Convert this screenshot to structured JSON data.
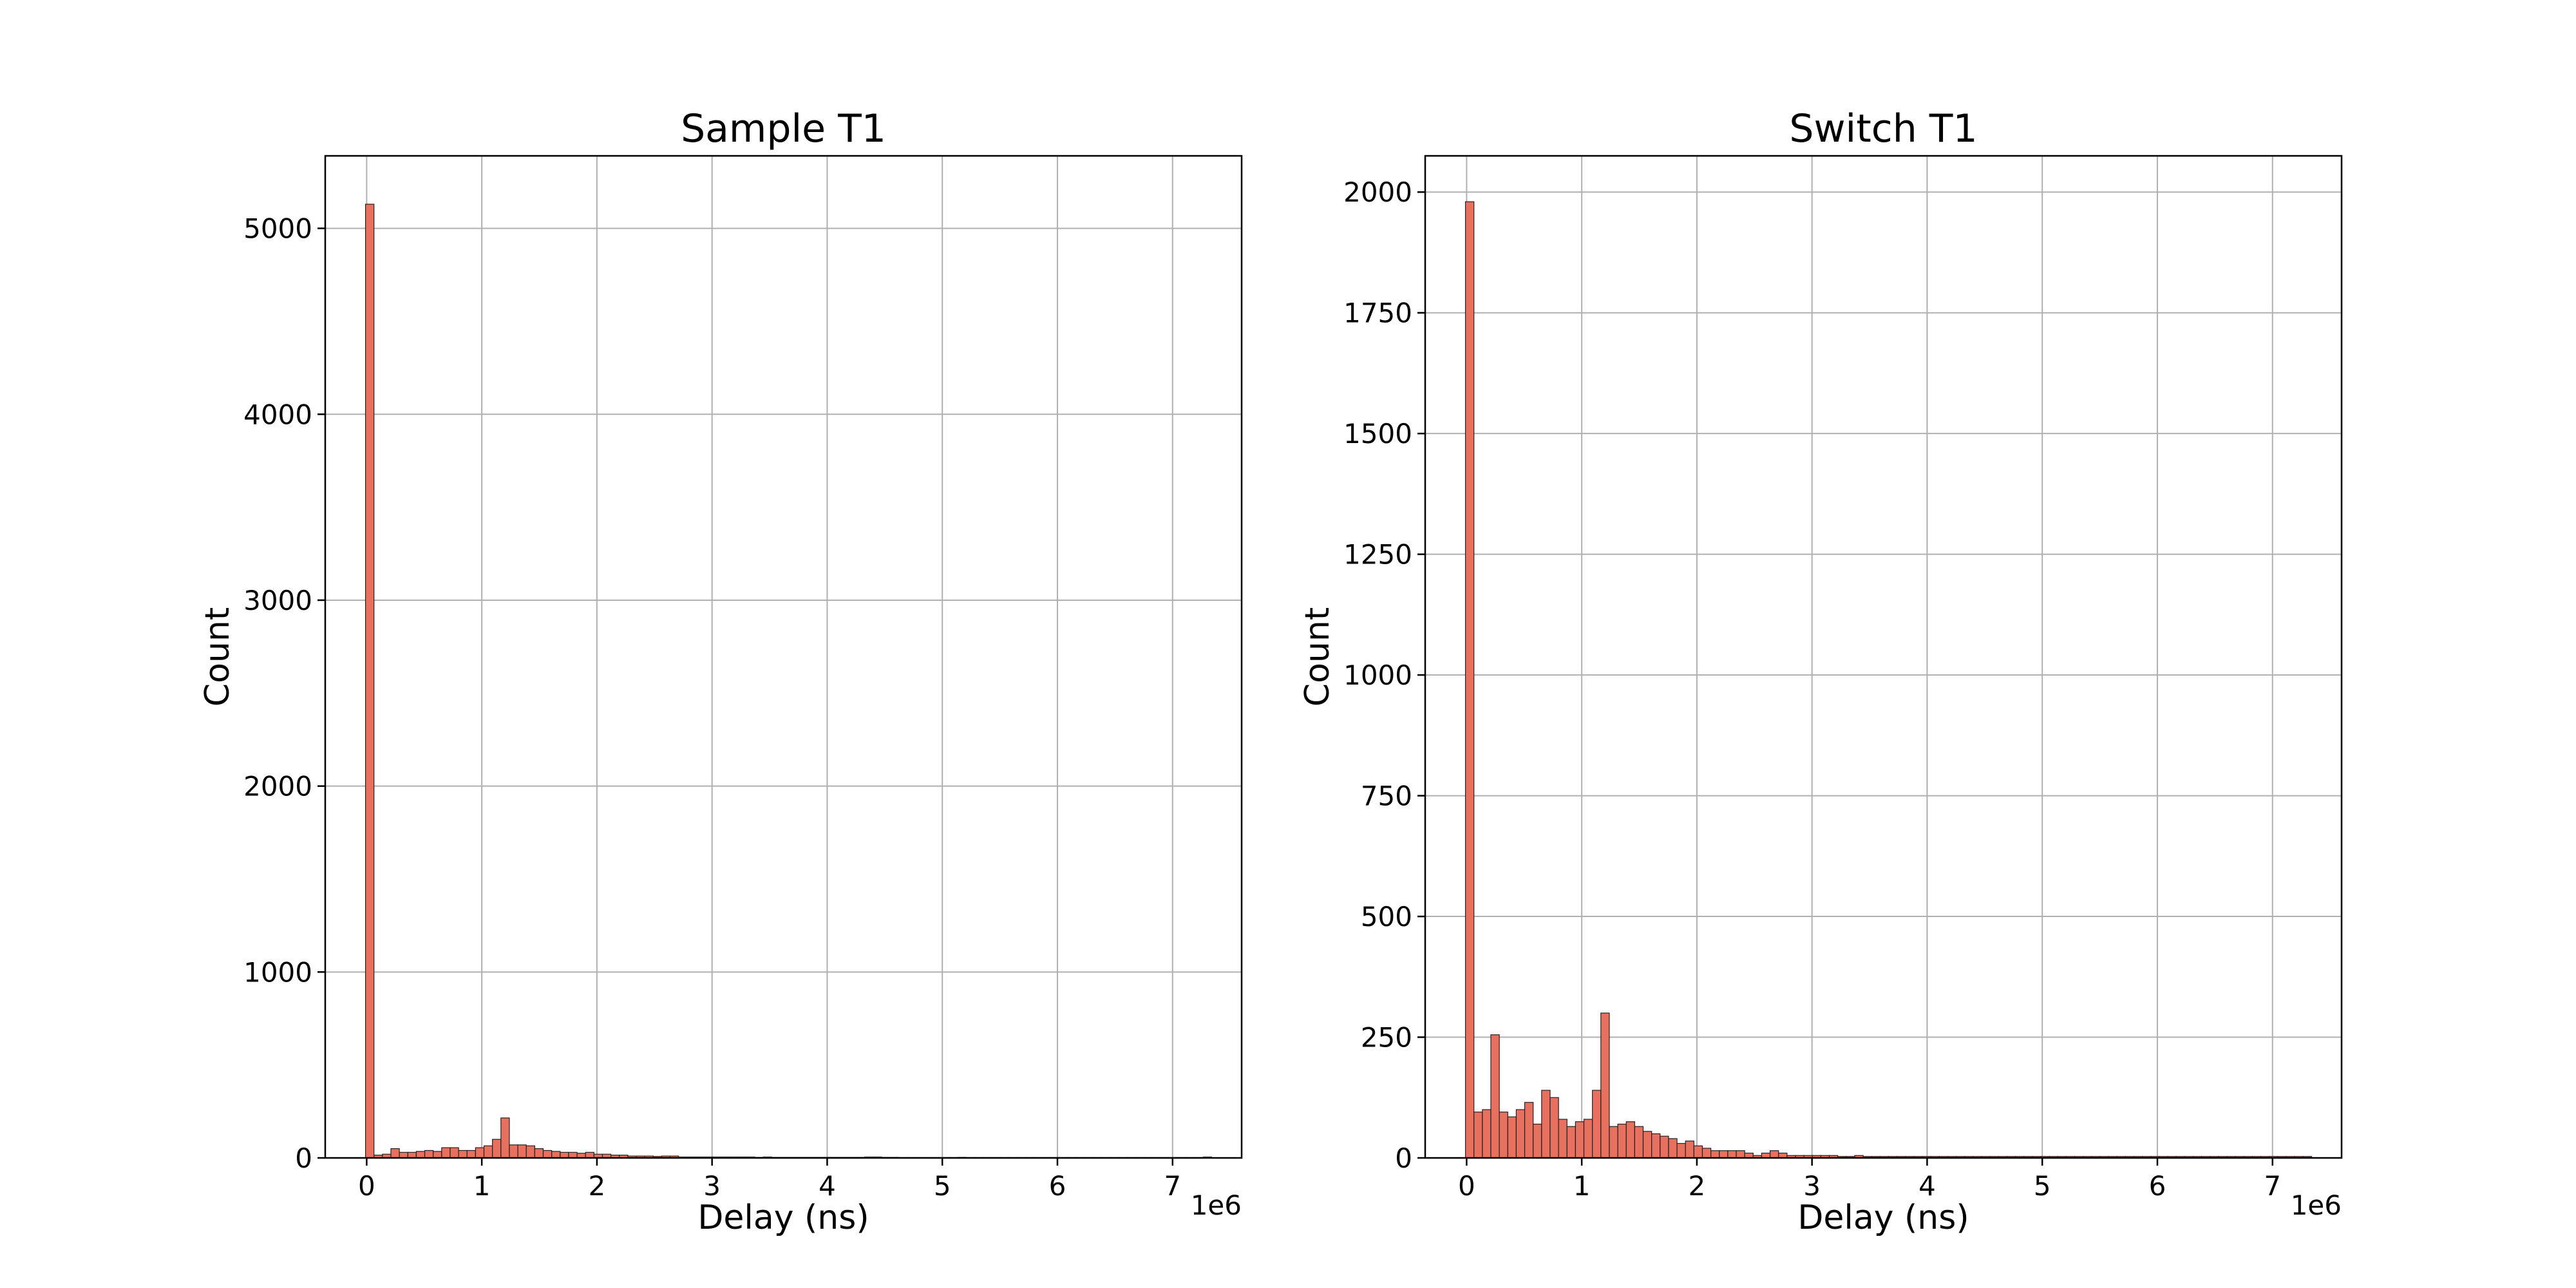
{
  "chart_data": [
    {
      "type": "bar",
      "title": "Sample T1",
      "xlabel": "Delay (ns)",
      "ylabel": "Count",
      "x_offset_label": "1e6",
      "xlim": [
        -0.36,
        7.6
      ],
      "ylim": [
        0,
        5390
      ],
      "xticks": [
        0,
        1,
        2,
        3,
        4,
        5,
        6,
        7
      ],
      "xtick_labels": [
        "0",
        "1",
        "2",
        "3",
        "4",
        "5",
        "6",
        "7"
      ],
      "yticks": [
        0,
        1000,
        2000,
        3000,
        4000,
        5000
      ],
      "ytick_labels": [
        "0",
        "1000",
        "2000",
        "3000",
        "4000",
        "5000"
      ],
      "grid": true,
      "bar_color": "#e8705f",
      "bin_width": 0.0735,
      "bin_start": -0.01,
      "values": [
        5130,
        15,
        20,
        50,
        30,
        30,
        35,
        40,
        35,
        55,
        55,
        40,
        40,
        55,
        65,
        100,
        215,
        70,
        70,
        65,
        50,
        40,
        35,
        30,
        30,
        25,
        30,
        20,
        20,
        15,
        15,
        10,
        10,
        10,
        8,
        10,
        10,
        5,
        5,
        5,
        5,
        5,
        5,
        5,
        5,
        5,
        3,
        5,
        3,
        3,
        3,
        3,
        3,
        3,
        3,
        3,
        3,
        3,
        3,
        5,
        5,
        3,
        3,
        2,
        2,
        2,
        2,
        2,
        2,
        2,
        3,
        2,
        2,
        2,
        2,
        2,
        2,
        2,
        2,
        2,
        2,
        2,
        2,
        2,
        2,
        2,
        2,
        2,
        2,
        2,
        2,
        2,
        2,
        2,
        2,
        2,
        2,
        2,
        2,
        5
      ]
    },
    {
      "type": "bar",
      "title": "Switch T1",
      "xlabel": "Delay (ns)",
      "ylabel": "Count",
      "x_offset_label": "1e6",
      "xlim": [
        -0.36,
        7.6
      ],
      "ylim": [
        0,
        2075
      ],
      "xticks": [
        0,
        1,
        2,
        3,
        4,
        5,
        6,
        7
      ],
      "xtick_labels": [
        "0",
        "1",
        "2",
        "3",
        "4",
        "5",
        "6",
        "7"
      ],
      "yticks": [
        0,
        250,
        500,
        750,
        1000,
        1250,
        1500,
        1750,
        2000
      ],
      "ytick_labels": [
        "0",
        "250",
        "500",
        "750",
        "1000",
        "1250",
        "1500",
        "1750",
        "2000"
      ],
      "grid": true,
      "bar_color": "#e8705f",
      "bin_width": 0.0735,
      "bin_start": -0.01,
      "values": [
        1980,
        95,
        100,
        255,
        95,
        85,
        100,
        115,
        70,
        140,
        125,
        80,
        65,
        75,
        80,
        140,
        300,
        65,
        70,
        75,
        65,
        55,
        50,
        45,
        40,
        30,
        35,
        25,
        20,
        15,
        15,
        15,
        15,
        10,
        5,
        10,
        15,
        10,
        5,
        5,
        5,
        5,
        5,
        5,
        3,
        3,
        5,
        3,
        3,
        3,
        3,
        3,
        3,
        3,
        3,
        3,
        3,
        3,
        3,
        3,
        3,
        3,
        3,
        3,
        3,
        3,
        3,
        3,
        3,
        3,
        3,
        3,
        3,
        3,
        3,
        3,
        3,
        3,
        3,
        3,
        3,
        3,
        3,
        3,
        3,
        3,
        3,
        3,
        3,
        3,
        3,
        3,
        3,
        3,
        3,
        3,
        3,
        3,
        3,
        3
      ]
    }
  ]
}
